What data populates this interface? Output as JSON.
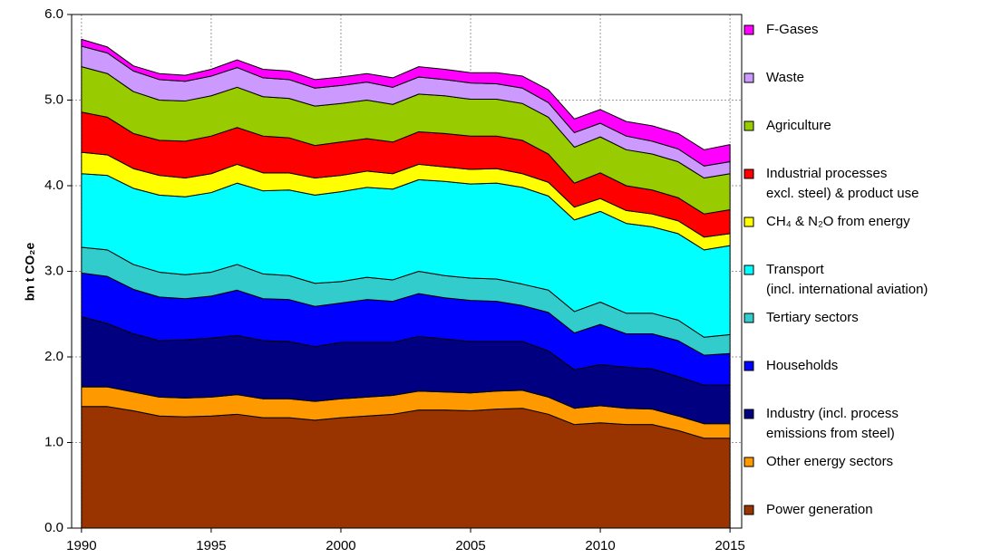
{
  "chart_data": {
    "type": "stacked_area",
    "y_label": "bn t CO₂e",
    "x": [
      1990,
      1991,
      1992,
      1993,
      1994,
      1995,
      1996,
      1997,
      1998,
      1999,
      2000,
      2001,
      2002,
      2003,
      2004,
      2005,
      2006,
      2007,
      2008,
      2009,
      2010,
      2011,
      2012,
      2013,
      2014,
      2015
    ],
    "xlim": [
      1989.62,
      2015.45
    ],
    "xticks": [
      1990,
      1995,
      2000,
      2005,
      2010,
      2015
    ],
    "ylim": [
      0,
      6
    ],
    "yticks": [
      {
        "value": 0,
        "label": "0.0"
      },
      {
        "value": 1,
        "label": "1.0"
      },
      {
        "value": 2,
        "label": "2.0"
      },
      {
        "value": 3,
        "label": "3.0"
      },
      {
        "value": 4,
        "label": "4.0"
      },
      {
        "value": 5,
        "label": "5.0"
      },
      {
        "value": 6,
        "label": "6.0"
      }
    ],
    "grid": true,
    "legend": "right",
    "series": [
      {
        "name": "Power generation",
        "color": "#993300",
        "values": [
          1.42,
          1.42,
          1.37,
          1.31,
          1.3,
          1.31,
          1.33,
          1.29,
          1.29,
          1.26,
          1.29,
          1.31,
          1.33,
          1.38,
          1.38,
          1.37,
          1.39,
          1.4,
          1.33,
          1.21,
          1.23,
          1.21,
          1.21,
          1.14,
          1.05,
          1.05
        ]
      },
      {
        "name": "Other energy sectors",
        "color": "#ff9900",
        "values": [
          0.23,
          0.23,
          0.22,
          0.22,
          0.22,
          0.22,
          0.23,
          0.22,
          0.22,
          0.22,
          0.22,
          0.22,
          0.22,
          0.22,
          0.21,
          0.21,
          0.21,
          0.21,
          0.2,
          0.19,
          0.2,
          0.19,
          0.18,
          0.17,
          0.17,
          0.17
        ]
      },
      {
        "name": "Industry (incl. process\nemissions from steel)",
        "color": "#000080",
        "values": [
          0.82,
          0.74,
          0.68,
          0.66,
          0.68,
          0.69,
          0.69,
          0.68,
          0.67,
          0.64,
          0.66,
          0.64,
          0.62,
          0.64,
          0.62,
          0.6,
          0.58,
          0.57,
          0.54,
          0.45,
          0.48,
          0.48,
          0.47,
          0.46,
          0.45,
          0.45
        ]
      },
      {
        "name": "Households",
        "color": "#0000ff",
        "values": [
          0.51,
          0.55,
          0.52,
          0.51,
          0.48,
          0.49,
          0.53,
          0.49,
          0.49,
          0.47,
          0.46,
          0.5,
          0.48,
          0.5,
          0.48,
          0.48,
          0.47,
          0.42,
          0.45,
          0.43,
          0.47,
          0.39,
          0.41,
          0.42,
          0.35,
          0.37
        ]
      },
      {
        "name": "Tertiary sectors",
        "color": "#33cccc",
        "values": [
          0.3,
          0.31,
          0.29,
          0.29,
          0.28,
          0.28,
          0.3,
          0.29,
          0.28,
          0.27,
          0.25,
          0.26,
          0.25,
          0.26,
          0.26,
          0.26,
          0.26,
          0.25,
          0.26,
          0.25,
          0.26,
          0.24,
          0.24,
          0.24,
          0.21,
          0.22
        ]
      },
      {
        "name": "Transport\n(incl. international aviation)",
        "color": "#00ffff",
        "values": [
          0.86,
          0.87,
          0.89,
          0.9,
          0.91,
          0.93,
          0.95,
          0.97,
          1.0,
          1.03,
          1.05,
          1.05,
          1.06,
          1.07,
          1.1,
          1.1,
          1.12,
          1.13,
          1.1,
          1.07,
          1.06,
          1.05,
          1.01,
          1.01,
          1.02,
          1.04
        ]
      },
      {
        "name": "CH₄ & N₂O from energy",
        "color": "#ffff00",
        "values": [
          0.25,
          0.24,
          0.23,
          0.23,
          0.22,
          0.22,
          0.22,
          0.21,
          0.2,
          0.2,
          0.19,
          0.19,
          0.18,
          0.18,
          0.17,
          0.17,
          0.17,
          0.16,
          0.16,
          0.15,
          0.15,
          0.15,
          0.15,
          0.15,
          0.15,
          0.14
        ]
      },
      {
        "name": "Industrial processes\nexcl. steel) & product use",
        "color": "#ff0000",
        "values": [
          0.47,
          0.44,
          0.41,
          0.41,
          0.43,
          0.44,
          0.43,
          0.43,
          0.41,
          0.38,
          0.39,
          0.38,
          0.37,
          0.38,
          0.39,
          0.39,
          0.38,
          0.39,
          0.33,
          0.28,
          0.3,
          0.29,
          0.28,
          0.27,
          0.27,
          0.28
        ]
      },
      {
        "name": "Agriculture",
        "color": "#99cc00",
        "values": [
          0.53,
          0.51,
          0.49,
          0.47,
          0.47,
          0.47,
          0.47,
          0.46,
          0.46,
          0.46,
          0.45,
          0.45,
          0.44,
          0.44,
          0.44,
          0.43,
          0.43,
          0.43,
          0.43,
          0.42,
          0.42,
          0.42,
          0.42,
          0.42,
          0.42,
          0.42
        ]
      },
      {
        "name": "Waste",
        "color": "#cc99ff",
        "values": [
          0.24,
          0.24,
          0.24,
          0.24,
          0.23,
          0.23,
          0.23,
          0.22,
          0.22,
          0.21,
          0.21,
          0.21,
          0.2,
          0.2,
          0.19,
          0.19,
          0.18,
          0.18,
          0.17,
          0.17,
          0.16,
          0.16,
          0.15,
          0.15,
          0.14,
          0.14
        ]
      },
      {
        "name": "F-Gases",
        "color": "#ff00ff",
        "values": [
          0.08,
          0.07,
          0.06,
          0.07,
          0.07,
          0.08,
          0.09,
          0.1,
          0.1,
          0.1,
          0.1,
          0.1,
          0.11,
          0.12,
          0.12,
          0.12,
          0.13,
          0.14,
          0.15,
          0.16,
          0.16,
          0.17,
          0.18,
          0.18,
          0.19,
          0.2
        ]
      }
    ]
  }
}
